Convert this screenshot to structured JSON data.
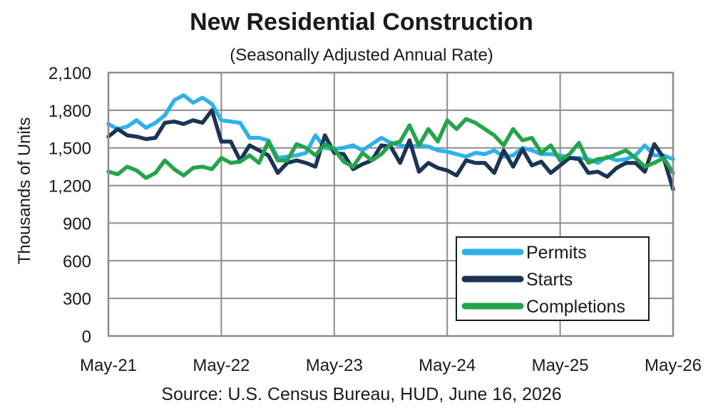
{
  "chart_data": {
    "type": "line",
    "title": "New Residential Construction",
    "subtitle": "(Seasonally Adjusted Annual Rate)",
    "ylabel": "Thousands of Units",
    "source": "Source:  U.S. Census Bureau, HUD, June 16, 2026",
    "ylim": [
      0,
      2100
    ],
    "yticks": [
      0,
      300,
      600,
      900,
      1200,
      1500,
      1800,
      2100
    ],
    "ytick_labels": [
      "0",
      "300",
      "600",
      "900",
      "1,200",
      "1,500",
      "1,800",
      "2,100"
    ],
    "xlim": [
      0,
      60
    ],
    "xticks": [
      0,
      12,
      24,
      36,
      48,
      60
    ],
    "xtick_labels": [
      "May-21",
      "May-22",
      "May-23",
      "May-24",
      "May-25",
      "May-26"
    ],
    "grid": true,
    "legend_position": "bottom-right",
    "series": [
      {
        "name": "Permits",
        "color": "#2eb1ea",
        "values": [
          1690,
          1650,
          1670,
          1720,
          1660,
          1700,
          1760,
          1880,
          1920,
          1860,
          1900,
          1850,
          1720,
          1710,
          1700,
          1580,
          1580,
          1560,
          1420,
          1430,
          1440,
          1460,
          1600,
          1500,
          1490,
          1500,
          1520,
          1480,
          1530,
          1580,
          1540,
          1520,
          1510,
          1520,
          1510,
          1480,
          1470,
          1450,
          1430,
          1460,
          1450,
          1480,
          1430,
          1440,
          1500,
          1480,
          1450,
          1450,
          1440,
          1420,
          1420,
          1410,
          1380,
          1430,
          1400,
          1410,
          1440,
          1520,
          1440,
          1440,
          1410
        ]
      },
      {
        "name": "Starts",
        "color": "#1c3454",
        "values": [
          1590,
          1650,
          1600,
          1590,
          1570,
          1580,
          1700,
          1710,
          1690,
          1720,
          1700,
          1800,
          1550,
          1550,
          1400,
          1520,
          1480,
          1440,
          1300,
          1380,
          1400,
          1380,
          1350,
          1600,
          1460,
          1450,
          1330,
          1370,
          1400,
          1520,
          1510,
          1380,
          1560,
          1310,
          1380,
          1340,
          1320,
          1280,
          1400,
          1380,
          1380,
          1300,
          1480,
          1350,
          1490,
          1360,
          1390,
          1300,
          1360,
          1420,
          1410,
          1300,
          1310,
          1270,
          1340,
          1380,
          1380,
          1310,
          1530,
          1420,
          1170
        ]
      },
      {
        "name": "Completions",
        "color": "#24a44a",
        "values": [
          1310,
          1290,
          1350,
          1320,
          1260,
          1300,
          1400,
          1330,
          1280,
          1340,
          1350,
          1330,
          1420,
          1380,
          1390,
          1440,
          1380,
          1550,
          1400,
          1400,
          1530,
          1500,
          1440,
          1530,
          1490,
          1390,
          1350,
          1460,
          1400,
          1450,
          1530,
          1550,
          1680,
          1520,
          1650,
          1550,
          1720,
          1650,
          1730,
          1700,
          1650,
          1600,
          1520,
          1650,
          1560,
          1580,
          1460,
          1520,
          1400,
          1450,
          1540,
          1380,
          1410,
          1420,
          1450,
          1480,
          1420,
          1350,
          1380,
          1420,
          1300
        ]
      }
    ]
  }
}
